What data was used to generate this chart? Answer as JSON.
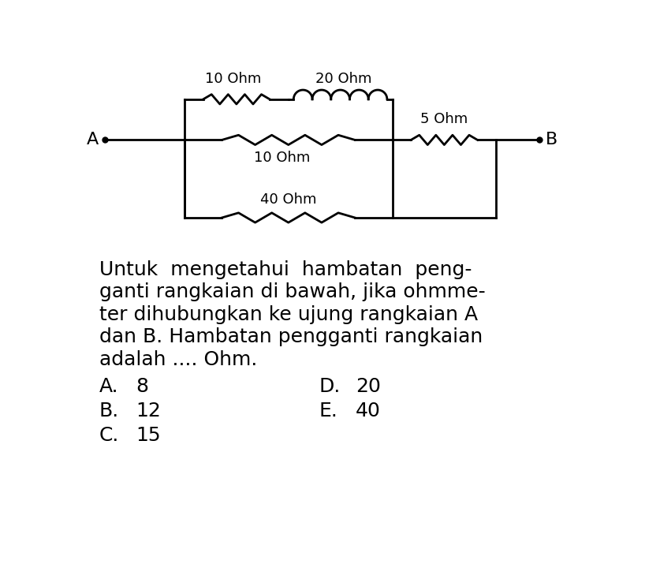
{
  "bg_color": "#ffffff",
  "line_color": "#000000",
  "line_width": 2.0,
  "text_color": "#000000",
  "circuit": {
    "A_label": "A",
    "B_label": "B",
    "r1_label": "10 Ohm",
    "r2_label": "20 Ohm",
    "r3_label": "10 Ohm",
    "r4_label": "40 Ohm",
    "r5_label": "5 Ohm"
  },
  "paragraph_lines": [
    "Untuk  mengetahui  hambatan  peng-",
    "ganti rangkaian di bawah, jika ohmme-",
    "ter dihubungkan ke ujung rangkaian A",
    "dan B. Hambatan pengganti rangkaian",
    "adalah .... Ohm."
  ],
  "options_left": [
    "A.",
    "B.",
    "C."
  ],
  "options_left_vals": [
    "8",
    "12",
    "15"
  ],
  "options_right": [
    "D.",
    "E."
  ],
  "options_right_vals": [
    "20",
    "40"
  ],
  "font_size_body": 18,
  "font_size_label": 13,
  "font_size_AB": 16
}
